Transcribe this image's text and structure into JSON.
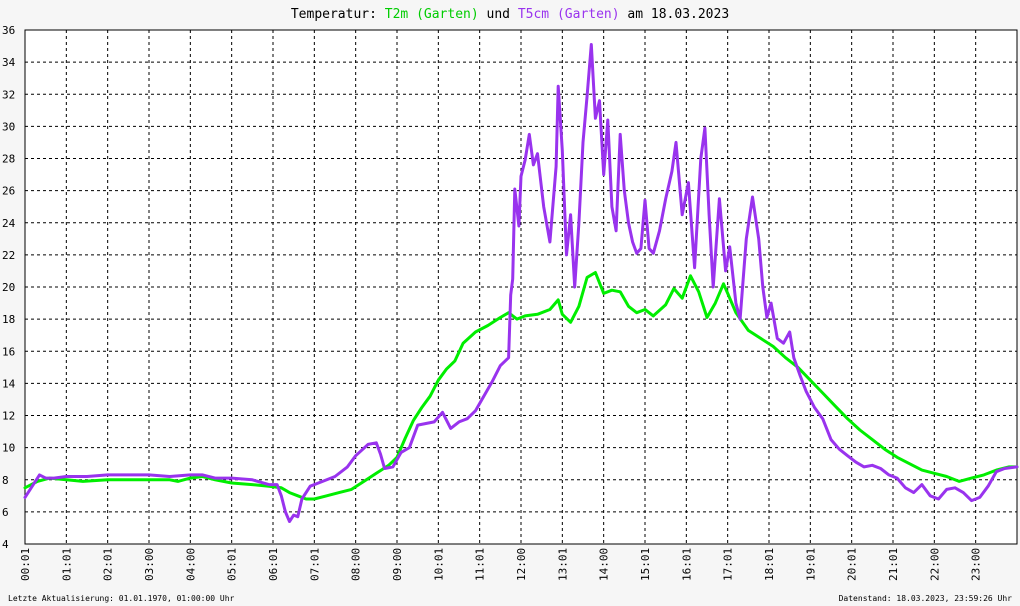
{
  "title": {
    "prefix": "Temperatur: ",
    "series1": "T2m (Garten)",
    "conj": " und ",
    "series2": "T5cm (Garten)",
    "suffix": " am 18.03.2023"
  },
  "footer": {
    "left": "Letzte Aktualisierung: 01.01.1970, 01:00:00 Uhr",
    "right": "Datenstand: 18.03.2023, 23:59:26 Uhr"
  },
  "colors": {
    "t2m": "#00ee00",
    "t5cm": "#9933ee",
    "background": "#ffffff",
    "grid": "#000000"
  },
  "chart_data": {
    "type": "line",
    "x_unit": "hours",
    "xlim": [
      0,
      24
    ],
    "ylim": [
      4,
      36
    ],
    "grid": true,
    "yticks": [
      4,
      6,
      8,
      10,
      12,
      14,
      16,
      18,
      20,
      22,
      24,
      26,
      28,
      30,
      32,
      34,
      36
    ],
    "xticks": [
      {
        "x": 0,
        "label": "00:01"
      },
      {
        "x": 1,
        "label": "01:01"
      },
      {
        "x": 2,
        "label": "02:01"
      },
      {
        "x": 3,
        "label": "03:00"
      },
      {
        "x": 4,
        "label": "04:00"
      },
      {
        "x": 5,
        "label": "05:01"
      },
      {
        "x": 6,
        "label": "06:01"
      },
      {
        "x": 7,
        "label": "07:01"
      },
      {
        "x": 8,
        "label": "08:00"
      },
      {
        "x": 9,
        "label": "09:00"
      },
      {
        "x": 10,
        "label": "10:01"
      },
      {
        "x": 11,
        "label": "11:01"
      },
      {
        "x": 12,
        "label": "12:00"
      },
      {
        "x": 13,
        "label": "13:01"
      },
      {
        "x": 14,
        "label": "14:00"
      },
      {
        "x": 15,
        "label": "15:01"
      },
      {
        "x": 16,
        "label": "16:01"
      },
      {
        "x": 17,
        "label": "17:01"
      },
      {
        "x": 18,
        "label": "18:01"
      },
      {
        "x": 19,
        "label": "19:01"
      },
      {
        "x": 20,
        "label": "20:01"
      },
      {
        "x": 21,
        "label": "21:01"
      },
      {
        "x": 22,
        "label": "22:00"
      },
      {
        "x": 23,
        "label": "23:00"
      }
    ],
    "series": [
      {
        "name": "T2m (Garten)",
        "color": "#00ee00",
        "points": [
          [
            0,
            7.5
          ],
          [
            0.3,
            7.9
          ],
          [
            0.6,
            8.1
          ],
          [
            1.0,
            8.0
          ],
          [
            1.4,
            7.9
          ],
          [
            2.0,
            8.0
          ],
          [
            2.5,
            8.0
          ],
          [
            3.0,
            8.0
          ],
          [
            3.5,
            8.0
          ],
          [
            3.7,
            7.9
          ],
          [
            4.0,
            8.1
          ],
          [
            4.3,
            8.2
          ],
          [
            4.6,
            8.0
          ],
          [
            5.0,
            7.8
          ],
          [
            5.5,
            7.7
          ],
          [
            5.9,
            7.6
          ],
          [
            6.2,
            7.5
          ],
          [
            6.4,
            7.2
          ],
          [
            6.6,
            7.0
          ],
          [
            6.8,
            6.8
          ],
          [
            7.0,
            6.8
          ],
          [
            7.3,
            7.0
          ],
          [
            7.6,
            7.2
          ],
          [
            7.9,
            7.4
          ],
          [
            8.2,
            7.9
          ],
          [
            8.5,
            8.4
          ],
          [
            8.8,
            8.9
          ],
          [
            9.0,
            9.4
          ],
          [
            9.2,
            10.6
          ],
          [
            9.4,
            11.7
          ],
          [
            9.6,
            12.5
          ],
          [
            9.8,
            13.2
          ],
          [
            10.0,
            14.2
          ],
          [
            10.2,
            14.9
          ],
          [
            10.4,
            15.4
          ],
          [
            10.6,
            16.5
          ],
          [
            10.9,
            17.2
          ],
          [
            11.2,
            17.6
          ],
          [
            11.5,
            18.1
          ],
          [
            11.7,
            18.4
          ],
          [
            11.9,
            18.0
          ],
          [
            12.1,
            18.2
          ],
          [
            12.4,
            18.3
          ],
          [
            12.7,
            18.6
          ],
          [
            12.9,
            19.2
          ],
          [
            13.0,
            18.3
          ],
          [
            13.2,
            17.8
          ],
          [
            13.4,
            18.8
          ],
          [
            13.6,
            20.6
          ],
          [
            13.8,
            20.9
          ],
          [
            14.0,
            19.6
          ],
          [
            14.2,
            19.8
          ],
          [
            14.4,
            19.7
          ],
          [
            14.6,
            18.8
          ],
          [
            14.8,
            18.4
          ],
          [
            15.0,
            18.6
          ],
          [
            15.2,
            18.2
          ],
          [
            15.5,
            18.9
          ],
          [
            15.7,
            19.9
          ],
          [
            15.9,
            19.3
          ],
          [
            16.1,
            20.7
          ],
          [
            16.3,
            19.7
          ],
          [
            16.5,
            18.1
          ],
          [
            16.7,
            19.0
          ],
          [
            16.9,
            20.2
          ],
          [
            17.0,
            19.6
          ],
          [
            17.2,
            18.4
          ],
          [
            17.5,
            17.3
          ],
          [
            17.8,
            16.8
          ],
          [
            18.1,
            16.3
          ],
          [
            18.4,
            15.6
          ],
          [
            18.7,
            15.0
          ],
          [
            19.0,
            14.2
          ],
          [
            19.3,
            13.4
          ],
          [
            19.6,
            12.6
          ],
          [
            19.9,
            11.8
          ],
          [
            20.2,
            11.1
          ],
          [
            20.5,
            10.5
          ],
          [
            20.8,
            9.9
          ],
          [
            21.1,
            9.4
          ],
          [
            21.4,
            9.0
          ],
          [
            21.7,
            8.6
          ],
          [
            22.0,
            8.4
          ],
          [
            22.3,
            8.2
          ],
          [
            22.6,
            7.9
          ],
          [
            22.9,
            8.1
          ],
          [
            23.2,
            8.3
          ],
          [
            23.5,
            8.6
          ],
          [
            23.8,
            8.8
          ],
          [
            24.0,
            8.8
          ]
        ]
      },
      {
        "name": "T5cm (Garten)",
        "color": "#9933ee",
        "points": [
          [
            0,
            6.9
          ],
          [
            0.2,
            7.7
          ],
          [
            0.35,
            8.3
          ],
          [
            0.5,
            8.1
          ],
          [
            0.7,
            8.1
          ],
          [
            1.0,
            8.2
          ],
          [
            1.5,
            8.2
          ],
          [
            2.0,
            8.3
          ],
          [
            2.5,
            8.3
          ],
          [
            3.0,
            8.3
          ],
          [
            3.5,
            8.2
          ],
          [
            4.0,
            8.3
          ],
          [
            4.3,
            8.3
          ],
          [
            4.6,
            8.1
          ],
          [
            5.0,
            8.1
          ],
          [
            5.5,
            8.0
          ],
          [
            5.9,
            7.7
          ],
          [
            6.1,
            7.7
          ],
          [
            6.2,
            7.0
          ],
          [
            6.3,
            6.0
          ],
          [
            6.4,
            5.4
          ],
          [
            6.5,
            5.8
          ],
          [
            6.6,
            5.7
          ],
          [
            6.7,
            6.8
          ],
          [
            6.9,
            7.6
          ],
          [
            7.2,
            7.9
          ],
          [
            7.5,
            8.2
          ],
          [
            7.8,
            8.8
          ],
          [
            8.0,
            9.5
          ],
          [
            8.3,
            10.2
          ],
          [
            8.5,
            10.3
          ],
          [
            8.6,
            9.6
          ],
          [
            8.7,
            8.7
          ],
          [
            8.9,
            8.8
          ],
          [
            9.1,
            9.7
          ],
          [
            9.3,
            10.0
          ],
          [
            9.5,
            11.4
          ],
          [
            9.7,
            11.5
          ],
          [
            9.9,
            11.6
          ],
          [
            10.1,
            12.2
          ],
          [
            10.3,
            11.2
          ],
          [
            10.5,
            11.6
          ],
          [
            10.7,
            11.8
          ],
          [
            10.9,
            12.3
          ],
          [
            11.1,
            13.2
          ],
          [
            11.3,
            14.1
          ],
          [
            11.5,
            15.1
          ],
          [
            11.7,
            15.6
          ],
          [
            11.75,
            19.5
          ],
          [
            11.8,
            20.5
          ],
          [
            11.85,
            26.1
          ],
          [
            11.95,
            23.8
          ],
          [
            12.0,
            26.9
          ],
          [
            12.1,
            27.9
          ],
          [
            12.2,
            29.5
          ],
          [
            12.3,
            27.6
          ],
          [
            12.4,
            28.3
          ],
          [
            12.55,
            25.0
          ],
          [
            12.7,
            22.8
          ],
          [
            12.85,
            27.5
          ],
          [
            12.9,
            32.5
          ],
          [
            13.0,
            28.5
          ],
          [
            13.1,
            22.0
          ],
          [
            13.2,
            24.5
          ],
          [
            13.3,
            20.0
          ],
          [
            13.4,
            24.0
          ],
          [
            13.5,
            29.0
          ],
          [
            13.6,
            31.9
          ],
          [
            13.7,
            35.1
          ],
          [
            13.8,
            30.5
          ],
          [
            13.9,
            31.6
          ],
          [
            14.0,
            27.0
          ],
          [
            14.1,
            30.4
          ],
          [
            14.2,
            25.0
          ],
          [
            14.3,
            23.5
          ],
          [
            14.4,
            29.5
          ],
          [
            14.5,
            26.0
          ],
          [
            14.6,
            24.0
          ],
          [
            14.7,
            22.8
          ],
          [
            14.8,
            22.1
          ],
          [
            14.9,
            22.4
          ],
          [
            15.0,
            25.4
          ],
          [
            15.1,
            22.4
          ],
          [
            15.2,
            22.1
          ],
          [
            15.35,
            23.5
          ],
          [
            15.5,
            25.5
          ],
          [
            15.65,
            27.2
          ],
          [
            15.75,
            29.0
          ],
          [
            15.9,
            24.5
          ],
          [
            16.05,
            26.5
          ],
          [
            16.2,
            21.2
          ],
          [
            16.35,
            28.0
          ],
          [
            16.45,
            29.9
          ],
          [
            16.55,
            24.5
          ],
          [
            16.65,
            20.0
          ],
          [
            16.8,
            25.5
          ],
          [
            16.95,
            21.0
          ],
          [
            17.05,
            22.5
          ],
          [
            17.2,
            19.0
          ],
          [
            17.3,
            18.0
          ],
          [
            17.45,
            23.0
          ],
          [
            17.6,
            25.6
          ],
          [
            17.75,
            23.0
          ],
          [
            17.85,
            20.0
          ],
          [
            17.95,
            18.1
          ],
          [
            18.05,
            19.0
          ],
          [
            18.2,
            16.8
          ],
          [
            18.35,
            16.5
          ],
          [
            18.5,
            17.2
          ],
          [
            18.6,
            15.6
          ],
          [
            18.75,
            14.5
          ],
          [
            18.9,
            13.5
          ],
          [
            19.1,
            12.5
          ],
          [
            19.3,
            11.8
          ],
          [
            19.5,
            10.5
          ],
          [
            19.7,
            9.9
          ],
          [
            19.9,
            9.5
          ],
          [
            20.1,
            9.1
          ],
          [
            20.3,
            8.8
          ],
          [
            20.5,
            8.9
          ],
          [
            20.7,
            8.7
          ],
          [
            20.9,
            8.3
          ],
          [
            21.1,
            8.1
          ],
          [
            21.3,
            7.5
          ],
          [
            21.5,
            7.2
          ],
          [
            21.7,
            7.7
          ],
          [
            21.9,
            7.0
          ],
          [
            22.1,
            6.8
          ],
          [
            22.3,
            7.4
          ],
          [
            22.5,
            7.5
          ],
          [
            22.7,
            7.2
          ],
          [
            22.9,
            6.7
          ],
          [
            23.1,
            6.9
          ],
          [
            23.3,
            7.6
          ],
          [
            23.5,
            8.5
          ],
          [
            23.7,
            8.7
          ],
          [
            24.0,
            8.8
          ]
        ]
      }
    ]
  }
}
